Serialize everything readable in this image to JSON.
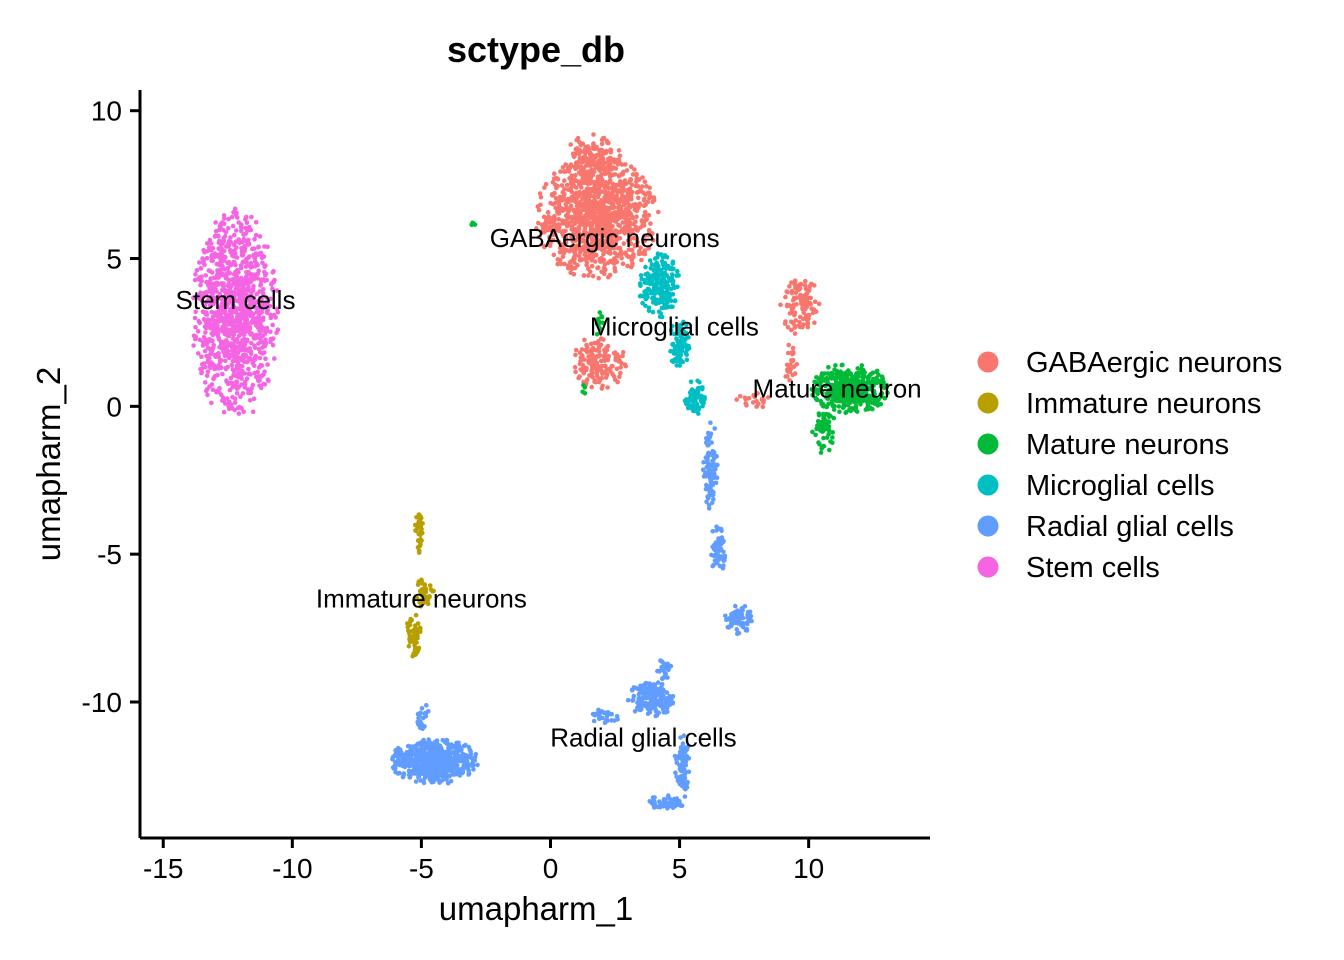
{
  "chart_data": {
    "type": "scatter",
    "title": "sctype_db",
    "xlabel": "umapharm_1",
    "ylabel": "umapharm_2",
    "xlim": [
      -15.9,
      14.7
    ],
    "ylim": [
      -14.6,
      10.7
    ],
    "xticks": [
      -15,
      -10,
      -5,
      0,
      5,
      10
    ],
    "xtick_labels": [
      "-15",
      "-10",
      "-5",
      "0",
      "5",
      "10"
    ],
    "yticks": [
      10,
      5,
      0,
      -5,
      -10
    ],
    "ytick_labels": [
      "10",
      "5",
      "0",
      "-5",
      "-10"
    ],
    "grid": false,
    "legend_position": "right",
    "series": [
      {
        "name": "GABAergic neurons",
        "color": "#F8766D",
        "regions": [
          {
            "cx": 1.8,
            "cy": 6.4,
            "rx": 2.4,
            "ry": 2.1,
            "n": 1100
          },
          {
            "cx": 1.6,
            "cy": 8.3,
            "rx": 1.2,
            "ry": 0.9,
            "n": 150
          },
          {
            "cx": 1.9,
            "cy": 1.5,
            "rx": 1.1,
            "ry": 0.9,
            "n": 150
          },
          {
            "cx": 9.7,
            "cy": 3.4,
            "rx": 0.8,
            "ry": 1.0,
            "n": 110
          },
          {
            "cx": 9.3,
            "cy": 1.5,
            "rx": 0.3,
            "ry": 0.7,
            "n": 25
          },
          {
            "cx": 8.0,
            "cy": 0.2,
            "rx": 0.8,
            "ry": 0.3,
            "n": 20
          }
        ]
      },
      {
        "name": "Immature neurons",
        "color": "#B79F00",
        "regions": [
          {
            "cx": -5.1,
            "cy": -4.3,
            "rx": 0.2,
            "ry": 0.8,
            "n": 35
          },
          {
            "cx": -4.9,
            "cy": -6.3,
            "rx": 0.4,
            "ry": 0.5,
            "n": 40
          },
          {
            "cx": -5.3,
            "cy": -7.7,
            "rx": 0.3,
            "ry": 0.8,
            "n": 55
          }
        ]
      },
      {
        "name": "Mature neurons",
        "color": "#00BA38",
        "regions": [
          {
            "cx": 11.6,
            "cy": 0.6,
            "rx": 1.5,
            "ry": 0.9,
            "n": 420
          },
          {
            "cx": 10.6,
            "cy": -0.8,
            "rx": 0.5,
            "ry": 0.8,
            "n": 60
          },
          {
            "cx": -3.0,
            "cy": 6.2,
            "rx": 0.15,
            "ry": 0.1,
            "n": 6
          },
          {
            "cx": 1.9,
            "cy": 2.8,
            "rx": 0.25,
            "ry": 0.4,
            "n": 12
          },
          {
            "cx": 1.3,
            "cy": 0.6,
            "rx": 0.15,
            "ry": 0.2,
            "n": 4
          }
        ]
      },
      {
        "name": "Microglial cells",
        "color": "#00BFC4",
        "regions": [
          {
            "cx": 4.2,
            "cy": 4.1,
            "rx": 0.8,
            "ry": 1.1,
            "n": 190
          },
          {
            "cx": 5.0,
            "cy": 2.1,
            "rx": 0.4,
            "ry": 0.9,
            "n": 80
          },
          {
            "cx": 5.6,
            "cy": 0.3,
            "rx": 0.4,
            "ry": 0.6,
            "n": 60
          }
        ]
      },
      {
        "name": "Radial glial cells",
        "color": "#619CFF",
        "regions": [
          {
            "cx": -4.5,
            "cy": -12.0,
            "rx": 1.7,
            "ry": 0.8,
            "n": 650
          },
          {
            "cx": -5.0,
            "cy": -10.5,
            "rx": 0.3,
            "ry": 0.5,
            "n": 20
          },
          {
            "cx": 3.9,
            "cy": -9.9,
            "rx": 0.9,
            "ry": 0.6,
            "n": 170
          },
          {
            "cx": 4.4,
            "cy": -8.9,
            "rx": 0.3,
            "ry": 0.5,
            "n": 30
          },
          {
            "cx": 2.0,
            "cy": -10.5,
            "rx": 0.7,
            "ry": 0.3,
            "n": 25
          },
          {
            "cx": 5.1,
            "cy": -12.2,
            "rx": 0.3,
            "ry": 1.1,
            "n": 80
          },
          {
            "cx": 4.5,
            "cy": -13.4,
            "rx": 0.7,
            "ry": 0.3,
            "n": 60
          },
          {
            "cx": 6.2,
            "cy": -2.0,
            "rx": 0.3,
            "ry": 1.5,
            "n": 100
          },
          {
            "cx": 6.5,
            "cy": -4.8,
            "rx": 0.3,
            "ry": 0.9,
            "n": 60
          },
          {
            "cx": 7.3,
            "cy": -7.2,
            "rx": 0.6,
            "ry": 0.5,
            "n": 70
          }
        ]
      },
      {
        "name": "Stem cells",
        "color": "#F564E3",
        "regions": [
          {
            "cx": -12.2,
            "cy": 3.1,
            "rx": 1.7,
            "ry": 3.6,
            "n": 1100
          }
        ]
      }
    ],
    "cluster_labels": [
      {
        "text": "Stem cells",
        "x": -12.2,
        "y": 3.6
      },
      {
        "text": "GABAergic neurons",
        "x": 2.1,
        "y": 5.7
      },
      {
        "text": "Microglial cells",
        "x": 4.8,
        "y": 2.7
      },
      {
        "text": "Mature neuron",
        "x": 11.1,
        "y": 0.6
      },
      {
        "text": "Immature neurons",
        "x": -5.0,
        "y": -6.5
      },
      {
        "text": "Radial glial cells",
        "x": 3.6,
        "y": -11.2
      }
    ]
  }
}
